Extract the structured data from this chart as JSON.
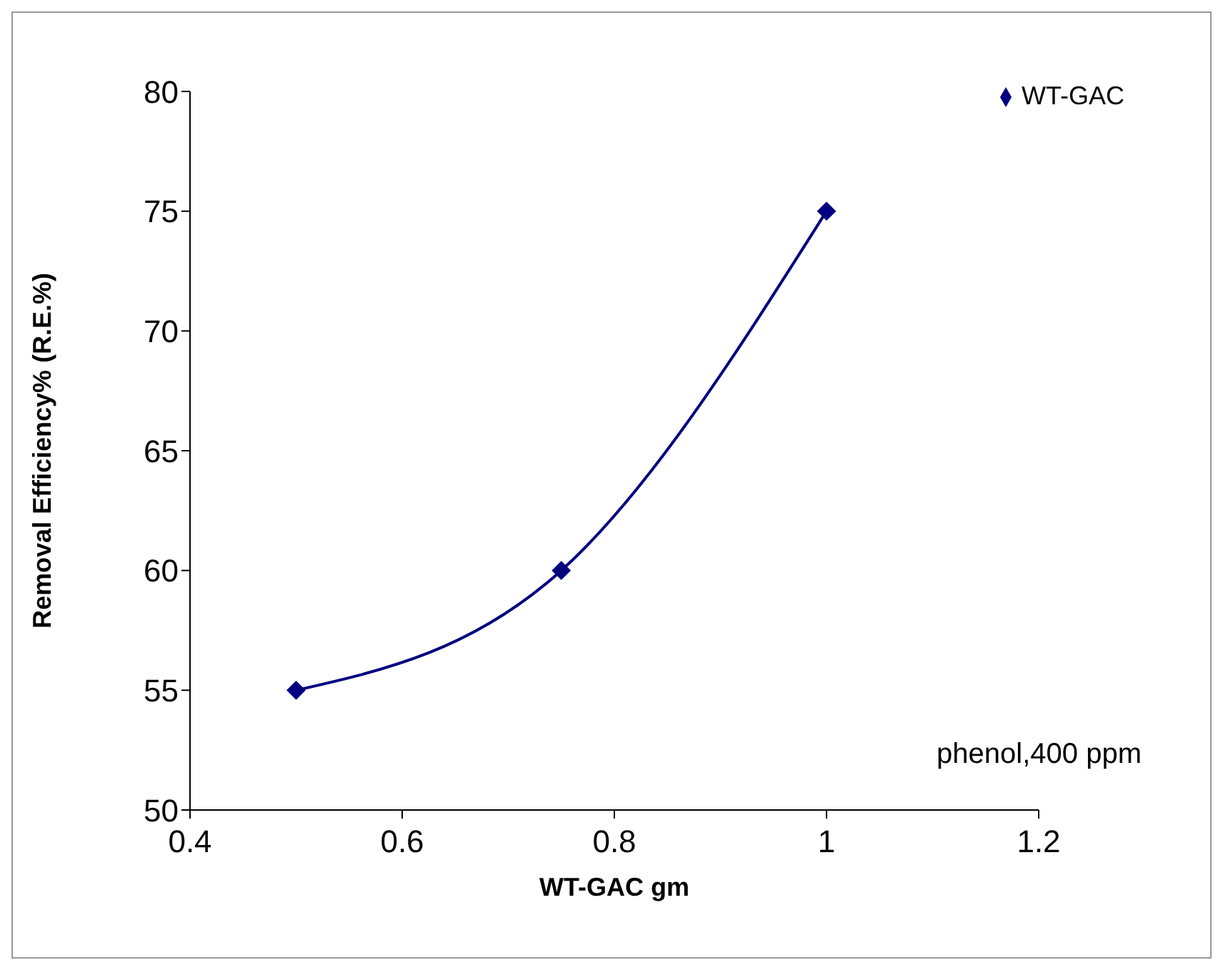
{
  "chart_data": {
    "type": "line",
    "xlabel": "WT-GAC gm",
    "ylabel": "Removal Efficiency% (R.E.%)",
    "x": [
      0.5,
      0.75,
      1
    ],
    "series": [
      {
        "name": "WT-GAC",
        "color": "#000080",
        "values": [
          55,
          60,
          75
        ]
      }
    ],
    "xlim": [
      0.4,
      1.2
    ],
    "xticks": [
      0.4,
      0.6,
      0.8,
      1,
      1.2
    ],
    "ylim": [
      50,
      80
    ],
    "yticks": [
      50,
      55,
      60,
      65,
      70,
      75,
      80
    ],
    "grid": false,
    "legend": "top right",
    "marker": "diamond",
    "line_style": "solid",
    "annotations": [
      "phenol,400 ppm"
    ]
  }
}
